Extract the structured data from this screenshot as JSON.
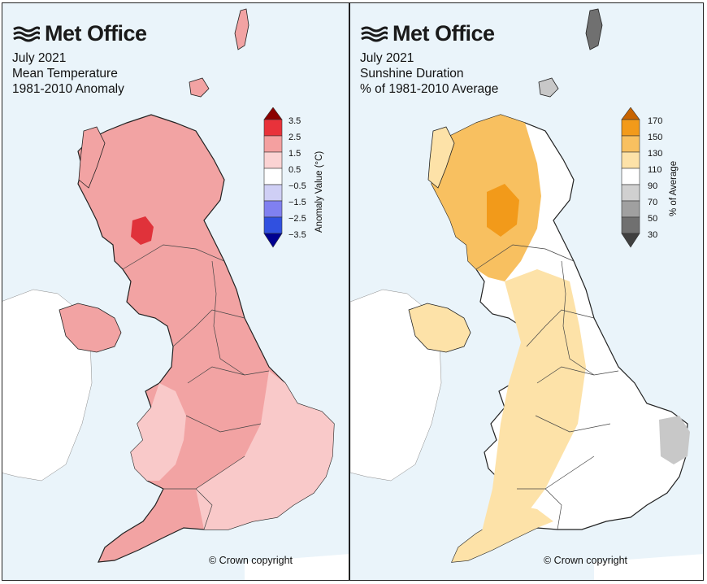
{
  "left_panel": {
    "logo_text": "Met Office",
    "logo_icon": "met-office-waves-icon",
    "title_line1": "July 2021",
    "title_line2": "Mean Temperature",
    "title_line3": "1981-2010 Anomaly",
    "legend_title": "Anomaly Value (°C)",
    "legend_ticks": [
      "3.5",
      "2.5",
      "1.5",
      "0.5",
      "−0.5",
      "−1.5",
      "−2.5",
      "−3.5"
    ],
    "legend_colors": [
      "#8b0000",
      "#e8323a",
      "#f4a0a0",
      "#fbd3d3",
      "#ffffff",
      "#cfcff5",
      "#8080f0",
      "#3050e0",
      "#000090"
    ],
    "copyright": "© Crown copyright"
  },
  "right_panel": {
    "logo_text": "Met Office",
    "logo_icon": "met-office-waves-icon",
    "title_line1": "July 2021",
    "title_line2": "Sunshine Duration",
    "title_line3": "% of 1981-2010 Average",
    "legend_title": "% of Average",
    "legend_ticks": [
      "170",
      "150",
      "130",
      "110",
      "90",
      "70",
      "50",
      "30"
    ],
    "legend_colors": [
      "#c86400",
      "#f29a1a",
      "#f8c060",
      "#fde2a8",
      "#ffffff",
      "#d0d0d0",
      "#a0a0a0",
      "#707070",
      "#404040"
    ],
    "copyright": "© Crown copyright"
  },
  "colors": {
    "sea": "#eaf4fa",
    "ireland": "#ffffff",
    "temp_main": "#f2a3a3",
    "temp_light": "#f9c9c9",
    "temp_hot": "#e0323a",
    "sun_main": "#fde2a8",
    "sun_mid": "#f8c060",
    "sun_high": "#f29a1a",
    "sun_grey": "#c8c8c8"
  }
}
